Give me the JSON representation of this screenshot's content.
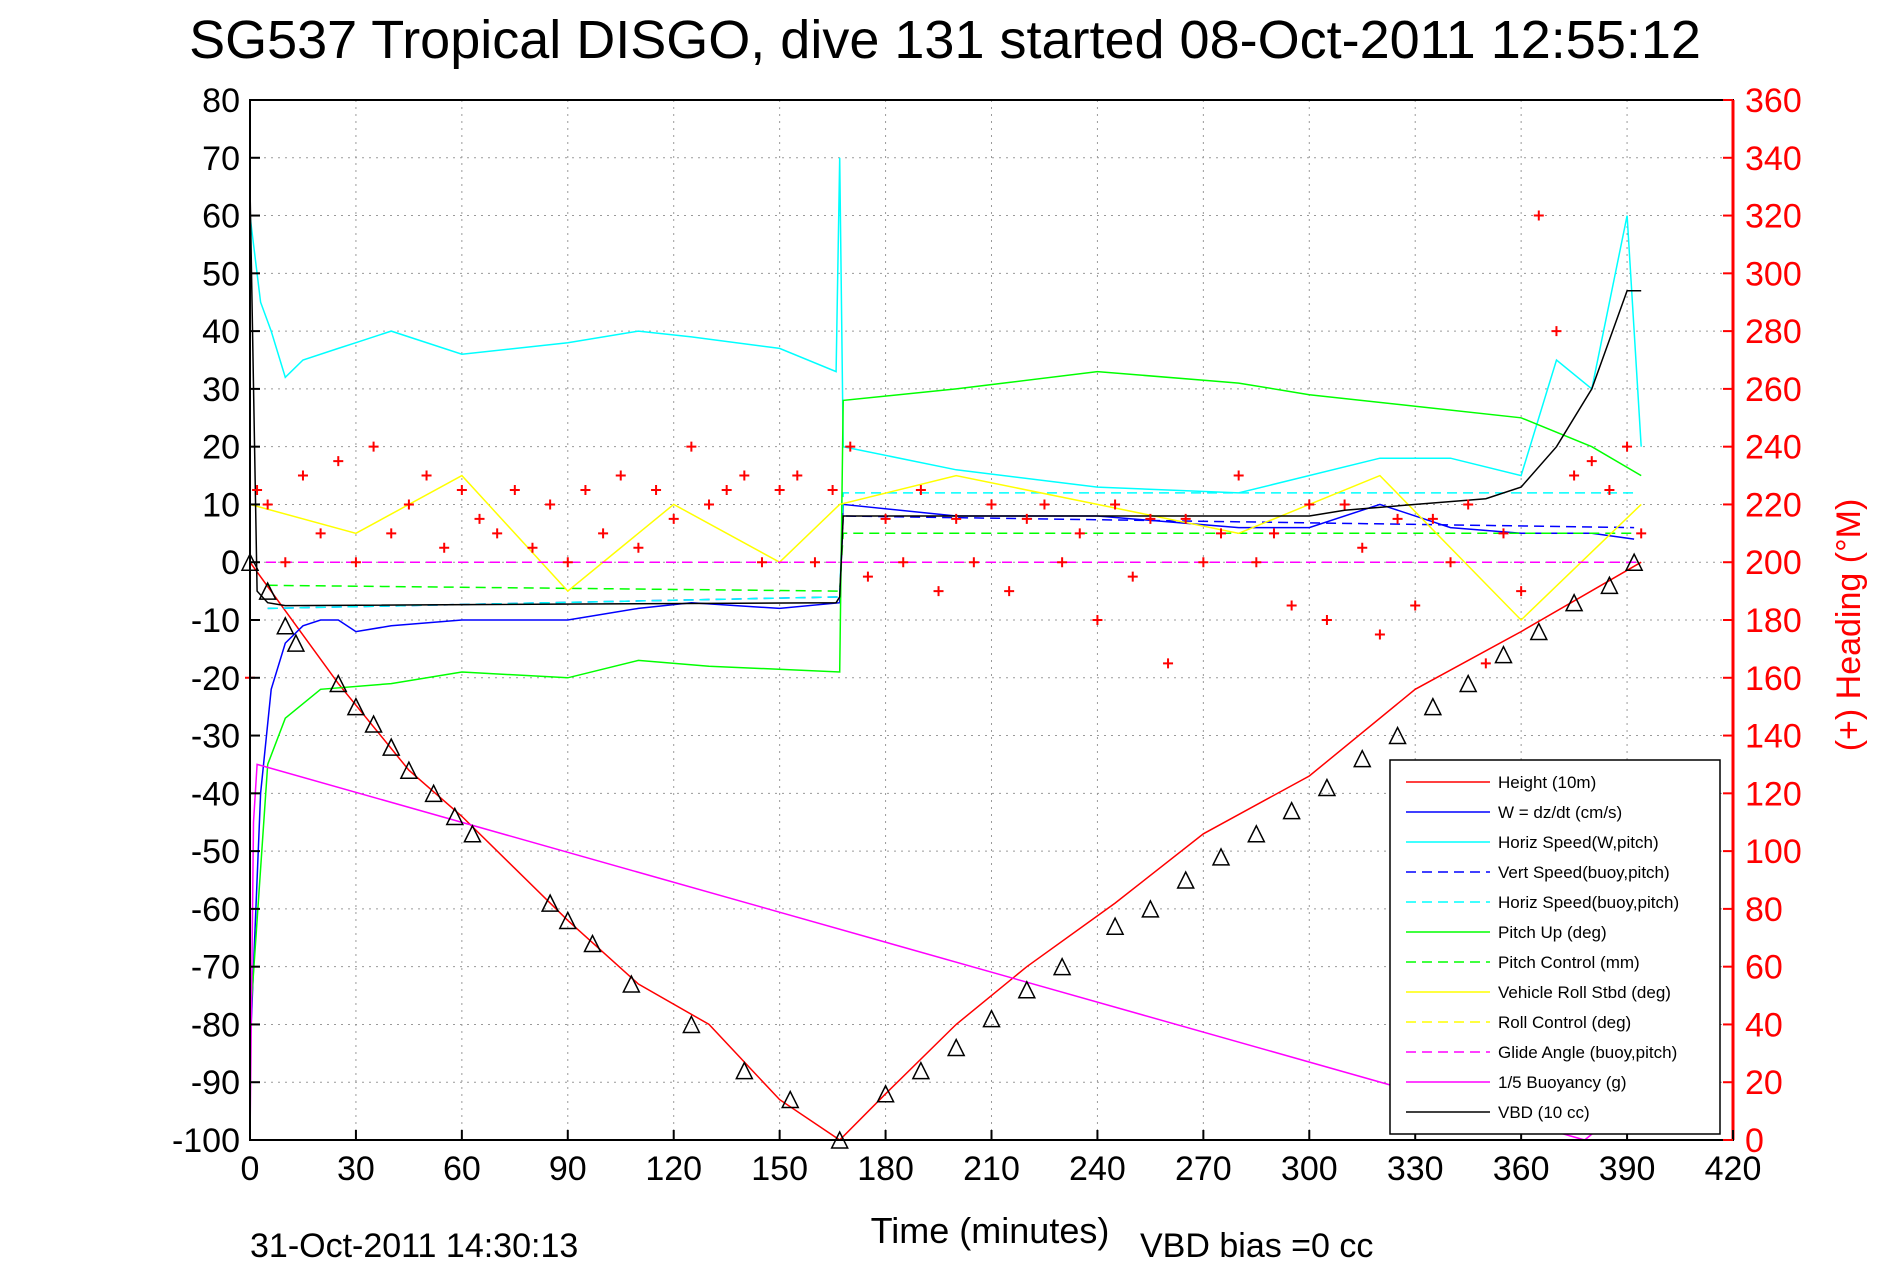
{
  "chart_data": {
    "type": "line",
    "title": "SG537 Tropical DISGO, dive 131 started 08-Oct-2011 12:55:12",
    "xlabel": "Time (minutes)",
    "ylabel_right": "(+) Heading (°M)",
    "xlim": [
      0,
      420
    ],
    "ylim": [
      -100,
      80
    ],
    "ylim_right": [
      0,
      360
    ],
    "x_ticks": [
      0,
      30,
      60,
      90,
      120,
      150,
      180,
      210,
      240,
      270,
      300,
      330,
      360,
      390,
      420
    ],
    "y_ticks": [
      -100,
      -90,
      -80,
      -70,
      -60,
      -50,
      -40,
      -30,
      -20,
      -10,
      0,
      10,
      20,
      30,
      40,
      50,
      60,
      70,
      80
    ],
    "y_ticks_right": [
      0,
      20,
      40,
      60,
      80,
      100,
      120,
      140,
      160,
      180,
      200,
      220,
      240,
      260,
      280,
      300,
      320,
      340,
      360
    ],
    "grid": true,
    "legend_position": "bottom-right",
    "footer_left": "31-Oct-2011 14:30:13",
    "footer_right": "VBD bias =0 cc",
    "series": [
      {
        "name": "Height (10m)",
        "color": "#ff0000",
        "style": "solid",
        "x": [
          0,
          25,
          45,
          60,
          90,
          110,
          130,
          150,
          167,
          180,
          200,
          220,
          245,
          270,
          300,
          330,
          360,
          394
        ],
        "y": [
          0,
          -21,
          -36,
          -44,
          -62,
          -73,
          -80,
          -93,
          -100,
          -92,
          -80,
          -70,
          -59,
          -47,
          -37,
          -22,
          -12,
          0
        ]
      },
      {
        "name": "W = dz/dt (cm/s)",
        "color": "#0000ff",
        "style": "solid",
        "x": [
          0,
          3,
          6,
          10,
          15,
          20,
          25,
          30,
          40,
          60,
          90,
          110,
          125,
          150,
          167,
          168,
          200,
          240,
          280,
          300,
          320,
          340,
          360,
          380,
          392
        ],
        "y": [
          -85,
          -40,
          -22,
          -14,
          -11,
          -10,
          -10,
          -12,
          -11,
          -10,
          -10,
          -8,
          -7,
          -8,
          -7,
          10,
          8,
          8,
          6,
          6,
          10,
          6,
          5,
          5,
          4
        ]
      },
      {
        "name": "Horiz Speed(W,pitch)",
        "color": "#00ffff",
        "style": "solid",
        "x": [
          0,
          3,
          6,
          10,
          15,
          25,
          30,
          40,
          60,
          90,
          110,
          125,
          150,
          166,
          167,
          168,
          200,
          240,
          280,
          320,
          340,
          360,
          370,
          380,
          390,
          394
        ],
        "y": [
          60,
          45,
          40,
          32,
          35,
          37,
          38,
          40,
          36,
          38,
          40,
          39,
          37,
          33,
          70,
          20,
          16,
          13,
          12,
          18,
          18,
          15,
          35,
          30,
          60,
          20
        ]
      },
      {
        "name": "Vert Speed(buoy,pitch)",
        "color": "#0000ff",
        "style": "dashed",
        "x": [
          5,
          167,
          168,
          392
        ],
        "y": [
          -8,
          -6,
          8,
          6
        ]
      },
      {
        "name": "Horiz Speed(buoy,pitch)",
        "color": "#00ffff",
        "style": "dashed",
        "x": [
          5,
          167,
          168,
          392
        ],
        "y": [
          -8,
          -6,
          12,
          12
        ]
      },
      {
        "name": "Pitch Up (deg)",
        "color": "#00ff00",
        "style": "solid",
        "x": [
          0,
          5,
          10,
          20,
          40,
          60,
          90,
          110,
          130,
          167,
          168,
          200,
          240,
          280,
          300,
          330,
          360,
          380,
          394
        ],
        "y": [
          -80,
          -35,
          -27,
          -22,
          -21,
          -19,
          -20,
          -17,
          -18,
          -19,
          28,
          30,
          33,
          31,
          29,
          27,
          25,
          20,
          15
        ]
      },
      {
        "name": "Pitch Control (mm)",
        "color": "#00ff00",
        "style": "dashed",
        "x": [
          5,
          167,
          168,
          392
        ],
        "y": [
          -4,
          -5,
          5,
          5
        ]
      },
      {
        "name": "Vehicle Roll Stbd (deg)",
        "color": "#ffff00",
        "style": "solid",
        "x": [
          0,
          30,
          60,
          90,
          120,
          150,
          167,
          200,
          240,
          280,
          320,
          360,
          394
        ],
        "y": [
          10,
          5,
          15,
          -5,
          10,
          0,
          10,
          15,
          10,
          5,
          15,
          -10,
          10
        ]
      },
      {
        "name": "Roll Control (deg)",
        "color": "#ffff00",
        "style": "dashed",
        "x": [
          0,
          394
        ],
        "y": [
          0,
          0
        ]
      },
      {
        "name": "Glide Angle (buoy,pitch)",
        "color": "#ff00ff",
        "style": "dashed",
        "x": [
          0,
          394
        ],
        "y": [
          0,
          0
        ]
      },
      {
        "name": "1/5 Buoyancy (g)",
        "color": "#ff00ff",
        "style": "solid",
        "x": [
          0,
          1,
          2,
          378,
          382
        ],
        "y": [
          -100,
          -45,
          -35,
          -100,
          -98
        ]
      },
      {
        "name": "VBD (10 cc)",
        "color": "#000000",
        "style": "solid",
        "x": [
          0,
          2,
          5,
          10,
          166,
          167,
          168,
          300,
          310,
          350,
          360,
          370,
          380,
          390,
          394
        ],
        "y": [
          65,
          -5,
          -7,
          -7.5,
          -7,
          -6,
          8,
          8,
          9,
          11,
          13,
          20,
          30,
          47,
          47
        ]
      }
    ],
    "heading_series": {
      "color": "#ff0000",
      "marker": "+",
      "x": [
        0,
        2,
        5,
        10,
        15,
        20,
        25,
        30,
        35,
        40,
        45,
        50,
        55,
        60,
        65,
        70,
        75,
        80,
        85,
        90,
        95,
        100,
        105,
        110,
        115,
        120,
        125,
        130,
        135,
        140,
        145,
        150,
        155,
        160,
        165,
        170,
        175,
        180,
        185,
        190,
        195,
        200,
        205,
        210,
        215,
        220,
        225,
        230,
        235,
        240,
        245,
        250,
        255,
        260,
        265,
        270,
        275,
        280,
        285,
        290,
        295,
        300,
        305,
        310,
        315,
        320,
        325,
        330,
        335,
        340,
        345,
        350,
        355,
        360,
        365,
        370,
        375,
        380,
        385,
        390,
        394
      ],
      "y": [
        160,
        225,
        220,
        200,
        230,
        210,
        235,
        200,
        240,
        210,
        220,
        230,
        205,
        225,
        215,
        210,
        225,
        205,
        220,
        200,
        225,
        210,
        230,
        205,
        225,
        215,
        240,
        220,
        225,
        230,
        200,
        225,
        230,
        200,
        225,
        240,
        195,
        215,
        200,
        225,
        190,
        215,
        200,
        220,
        190,
        215,
        220,
        200,
        210,
        180,
        220,
        195,
        215,
        165,
        215,
        200,
        210,
        230,
        200,
        210,
        185,
        220,
        180,
        220,
        205,
        175,
        215,
        185,
        215,
        200,
        220,
        165,
        210,
        190,
        320,
        280,
        230,
        235,
        225,
        240,
        210
      ]
    },
    "dive_markers": {
      "marker": "triangle",
      "x": [
        0,
        5,
        10,
        13,
        25,
        30,
        35,
        40,
        45,
        52,
        58,
        63,
        85,
        90,
        97,
        108,
        125,
        140,
        153,
        167,
        180,
        190,
        200,
        210,
        220,
        230,
        245,
        255,
        265,
        275,
        285,
        295,
        305,
        315,
        325,
        335,
        345,
        355,
        365,
        375,
        385,
        392
      ],
      "y": [
        0,
        -5,
        -11,
        -14,
        -21,
        -25,
        -28,
        -32,
        -36,
        -40,
        -44,
        -47,
        -59,
        -62,
        -66,
        -73,
        -80,
        -88,
        -93,
        -100,
        -92,
        -88,
        -84,
        -79,
        -74,
        -70,
        -63,
        -60,
        -55,
        -51,
        -47,
        -43,
        -39,
        -34,
        -30,
        -25,
        -21,
        -16,
        -12,
        -7,
        -4,
        0
      ]
    }
  }
}
